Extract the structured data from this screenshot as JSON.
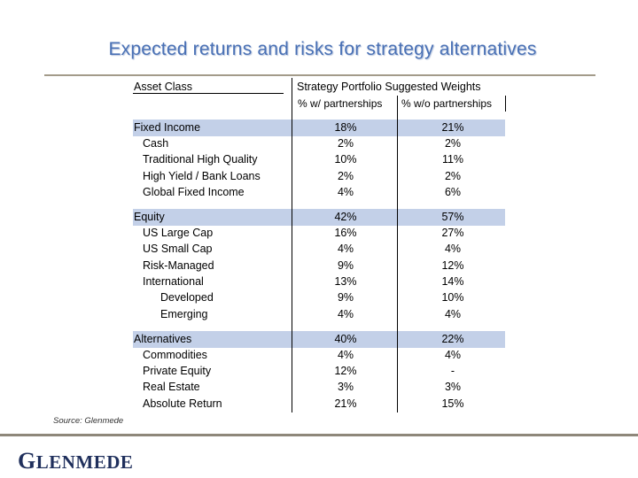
{
  "title": "Expected returns and risks for strategy alternatives",
  "header": {
    "asset_class": "Asset Class",
    "strategy": "Strategy Portfolio Suggested Weights",
    "col1": "% w/ partnerships",
    "col2": "% w/o partnerships"
  },
  "rows": [
    {
      "label": "Fixed Income",
      "v1": "18%",
      "v2": "21%"
    },
    {
      "label": "Cash",
      "v1": "2%",
      "v2": "2%"
    },
    {
      "label": "Traditional High Quality",
      "v1": "10%",
      "v2": "11%"
    },
    {
      "label": "High Yield / Bank Loans",
      "v1": "2%",
      "v2": "2%"
    },
    {
      "label": "Global Fixed Income",
      "v1": "4%",
      "v2": "6%"
    },
    {
      "label": "Equity",
      "v1": "42%",
      "v2": "57%"
    },
    {
      "label": "US Large Cap",
      "v1": "16%",
      "v2": "27%"
    },
    {
      "label": "US Small Cap",
      "v1": "4%",
      "v2": "4%"
    },
    {
      "label": "Risk-Managed",
      "v1": "9%",
      "v2": "12%"
    },
    {
      "label": "International",
      "v1": "13%",
      "v2": "14%"
    },
    {
      "label": "Developed",
      "v1": "9%",
      "v2": "10%"
    },
    {
      "label": "Emerging",
      "v1": "4%",
      "v2": "4%"
    },
    {
      "label": "Alternatives",
      "v1": "40%",
      "v2": "22%"
    },
    {
      "label": "Commodities",
      "v1": "4%",
      "v2": "4%"
    },
    {
      "label": "Private Equity",
      "v1": "12%",
      "v2": "-"
    },
    {
      "label": "Real Estate",
      "v1": "3%",
      "v2": "3%"
    },
    {
      "label": "Absolute Return",
      "v1": "21%",
      "v2": "15%"
    }
  ],
  "source": "Source: Glenmede",
  "logo": {
    "first": "G",
    "rest": "LENMEDE"
  },
  "colors": {
    "title": "#4a71b5",
    "band": "#c3d0e8",
    "logo": "#1f2f5c"
  }
}
